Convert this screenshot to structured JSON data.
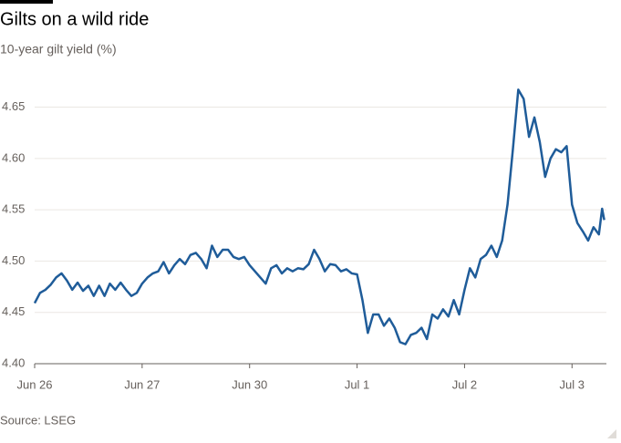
{
  "chart_data": {
    "type": "line",
    "title": "Gilts on a wild ride",
    "subtitle": "10-year gilt yield (%)",
    "source": "Source: LSEG",
    "x": [
      0,
      0.05,
      0.1,
      0.15,
      0.2,
      0.25,
      0.3,
      0.35,
      0.4,
      0.45,
      0.5,
      0.55,
      0.6,
      0.65,
      0.7,
      0.75,
      0.8,
      0.85,
      0.9,
      0.95,
      1.0,
      1.05,
      1.1,
      1.15,
      1.2,
      1.25,
      1.3,
      1.35,
      1.4,
      1.45,
      1.5,
      1.55,
      1.6,
      1.65,
      1.7,
      1.75,
      1.8,
      1.85,
      1.9,
      1.95,
      2.0,
      2.05,
      2.1,
      2.15,
      2.2,
      2.25,
      2.3,
      2.35,
      2.4,
      2.45,
      2.5,
      2.55,
      2.6,
      2.65,
      2.7,
      2.75,
      2.8,
      2.85,
      2.9,
      2.95,
      3.0,
      3.05,
      3.1,
      3.15,
      3.2,
      3.25,
      3.3,
      3.35,
      3.4,
      3.45,
      3.5,
      3.55,
      3.6,
      3.65,
      3.7,
      3.75,
      3.8,
      3.85,
      3.9,
      3.95,
      4.0,
      4.05,
      4.1,
      4.15,
      4.2,
      4.25,
      4.3,
      4.35,
      4.4,
      4.45,
      4.5,
      4.55,
      4.6,
      4.65,
      4.7,
      4.75,
      4.8,
      4.85,
      4.9,
      4.95,
      5.0,
      5.05,
      5.1,
      5.15,
      5.2,
      5.25,
      5.28,
      5.3
    ],
    "series": [
      {
        "name": "10-year gilt yield",
        "color": "#1f5c99",
        "values": [
          4.459,
          4.469,
          4.472,
          4.477,
          4.484,
          4.488,
          4.481,
          4.472,
          4.479,
          4.471,
          4.476,
          4.466,
          4.476,
          4.466,
          4.478,
          4.472,
          4.479,
          4.472,
          4.466,
          4.469,
          4.478,
          4.484,
          4.488,
          4.49,
          4.499,
          4.488,
          4.496,
          4.502,
          4.497,
          4.506,
          4.508,
          4.502,
          4.493,
          4.515,
          4.504,
          4.511,
          4.511,
          4.504,
          4.502,
          4.504,
          4.496,
          4.49,
          4.484,
          4.478,
          4.493,
          4.496,
          4.488,
          4.493,
          4.49,
          4.493,
          4.492,
          4.497,
          4.511,
          4.502,
          4.49,
          4.497,
          4.496,
          4.49,
          4.492,
          4.488,
          4.487,
          4.462,
          4.43,
          4.448,
          4.448,
          4.437,
          4.444,
          4.435,
          4.421,
          4.419,
          4.428,
          4.43,
          4.435,
          4.424,
          4.448,
          4.444,
          4.453,
          4.446,
          4.462,
          4.448,
          4.472,
          4.493,
          4.484,
          4.502,
          4.506,
          4.515,
          4.504,
          4.52,
          4.555,
          4.609,
          4.667,
          4.658,
          4.621,
          4.64,
          4.616,
          4.582,
          4.6,
          4.609,
          4.606,
          4.612,
          4.555,
          4.537,
          4.529,
          4.52,
          4.533,
          4.526,
          4.551,
          4.54
        ]
      }
    ],
    "xlim": [
      0,
      5.32
    ],
    "xticks": [
      {
        "value": 0,
        "label": "Jun 26"
      },
      {
        "value": 1,
        "label": "Jun 27"
      },
      {
        "value": 2,
        "label": "Jun 30"
      },
      {
        "value": 3,
        "label": "Jul 1"
      },
      {
        "value": 4,
        "label": "Jul 2"
      },
      {
        "value": 5,
        "label": "Jul 3"
      }
    ],
    "ylim": [
      4.4,
      4.67
    ],
    "yticks": [
      {
        "value": 4.4,
        "label": "4.40"
      },
      4.45,
      {
        "value": 4.5,
        "label": "4.50"
      },
      4.55,
      {
        "value": 4.6,
        "label": "4.60"
      },
      4.65
    ],
    "grid": true
  }
}
